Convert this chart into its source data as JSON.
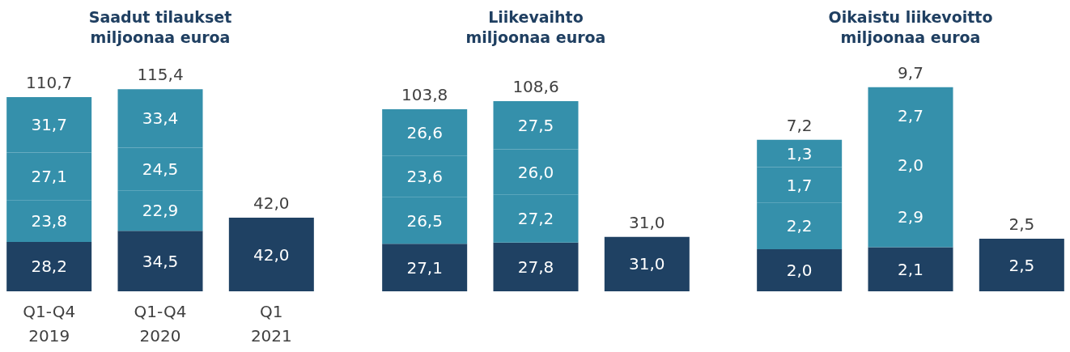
{
  "chart_data": [
    {
      "type": "bar",
      "title": "Saadut tilaukset",
      "subtitle": "miljoonaa euroa",
      "categories": [
        "Q1-Q4\n2019",
        "Q1-Q4\n2020",
        "Q1\n2021"
      ],
      "stacked": true,
      "tick_labels": "x",
      "series": [
        {
          "color": "#1f4163",
          "values": [
            28.2,
            34.5,
            42.0
          ],
          "value_labels": [
            "28,2",
            "34,5",
            "42,0"
          ]
        },
        {
          "color": "#3590ab",
          "values": [
            23.8,
            22.9,
            null
          ],
          "value_labels": [
            "23,8",
            "22,9",
            null
          ]
        },
        {
          "color": "#3590ab",
          "values": [
            27.1,
            24.5,
            null
          ],
          "value_labels": [
            "27,1",
            "24,5",
            null
          ]
        },
        {
          "color": "#3590ab",
          "values": [
            31.7,
            33.4,
            null
          ],
          "value_labels": [
            "31,7",
            "33,4",
            null
          ]
        }
      ],
      "totals": [
        "110,7",
        "115,4",
        "42,0"
      ]
    },
    {
      "type": "bar",
      "title": "Liikevaihto",
      "subtitle": "miljoonaa euroa",
      "categories": [
        null,
        null,
        null
      ],
      "stacked": true,
      "tick_labels": false,
      "series": [
        {
          "color": "#1f4163",
          "values": [
            27.1,
            27.8,
            31.0
          ],
          "value_labels": [
            "27,1",
            "27,8",
            "31,0"
          ]
        },
        {
          "color": "#3590ab",
          "values": [
            26.5,
            27.2,
            null
          ],
          "value_labels": [
            "26,5",
            "27,2",
            null
          ]
        },
        {
          "color": "#3590ab",
          "values": [
            23.6,
            26.0,
            null
          ],
          "value_labels": [
            "23,6",
            "26,0",
            null
          ]
        },
        {
          "color": "#3590ab",
          "values": [
            26.6,
            27.5,
            null
          ],
          "value_labels": [
            "26,6",
            "27,5",
            null
          ]
        }
      ],
      "totals": [
        "103,8",
        "108,6",
        "31,0"
      ]
    },
    {
      "type": "bar",
      "title": "Oikaistu liikevoitto",
      "subtitle": "miljoonaa euroa",
      "categories": [
        null,
        null,
        null
      ],
      "stacked": true,
      "tick_labels": false,
      "series": [
        {
          "color": "#1f4163",
          "values": [
            2.0,
            2.1,
            2.5
          ],
          "value_labels": [
            "2,0",
            "2,1",
            "2,5"
          ]
        },
        {
          "color": "#3590ab",
          "values": [
            2.2,
            2.9,
            null
          ],
          "value_labels": [
            "2,2",
            "2,9",
            null
          ]
        },
        {
          "color": "#3590ab",
          "values": [
            1.7,
            2.0,
            null
          ],
          "value_labels": [
            "1,7",
            "2,0",
            null
          ]
        },
        {
          "color": "#3590ab",
          "values": [
            1.3,
            2.7,
            null
          ],
          "value_labels": [
            "1,3",
            "2,7",
            null
          ]
        }
      ],
      "totals": [
        "7,2",
        "9,7",
        "2,5"
      ]
    }
  ]
}
